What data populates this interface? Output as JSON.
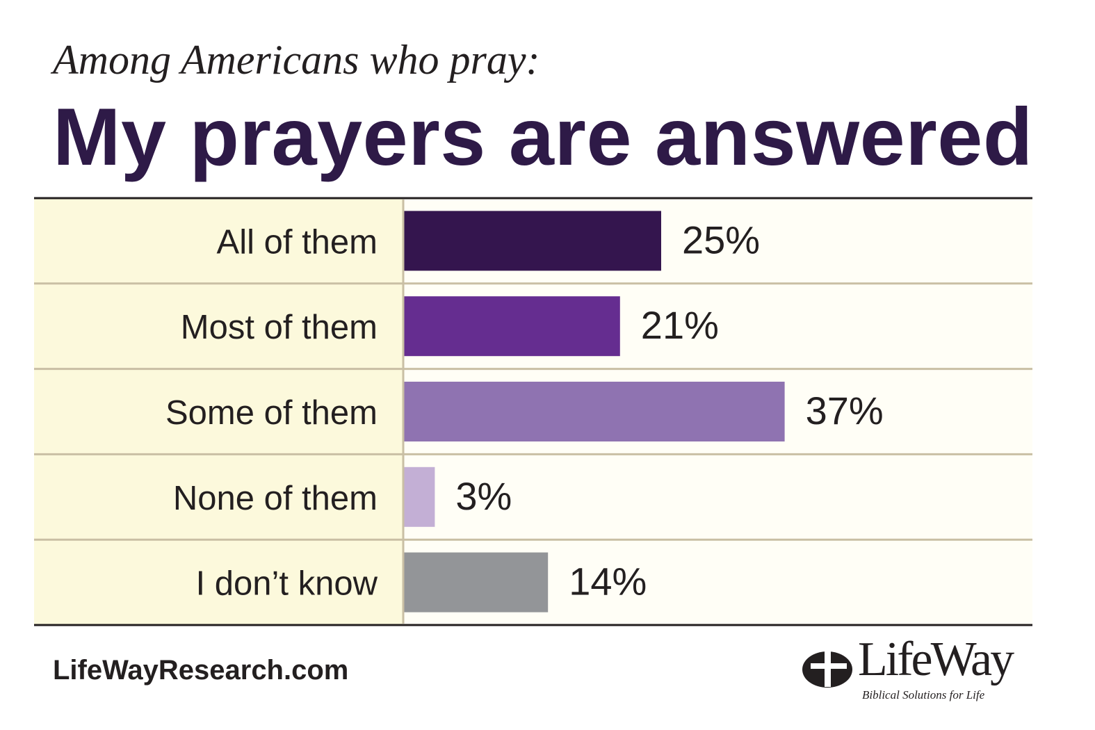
{
  "chart_data": {
    "type": "bar",
    "orientation": "horizontal",
    "subtitle": "Among Americans who pray:",
    "title": "My prayers are answered",
    "categories": [
      "All of them",
      "Most of them",
      "Some of them",
      "None of them",
      "I don’t know"
    ],
    "values": [
      25,
      21,
      37,
      3,
      14
    ],
    "value_labels": [
      "25%",
      "21%",
      "37%",
      "3%",
      "14%"
    ],
    "colors": [
      "#34154e",
      "#652d90",
      "#8f73b1",
      "#c3afd5",
      "#939598"
    ],
    "xlim": [
      0,
      100
    ],
    "grid": false,
    "legend": "none"
  },
  "footer": {
    "website": "LifeWayResearch.com"
  },
  "logo": {
    "name": "LifeWay",
    "tagline": "Biblical Solutions for Life",
    "icon": "cross-oval-icon"
  },
  "colors": {
    "title": "#2e1a47",
    "label_column_bg": "#fcf9dc",
    "plot_bg": "#fffef6",
    "row_divider": "#c9bfa4",
    "rule": "#231f20"
  }
}
